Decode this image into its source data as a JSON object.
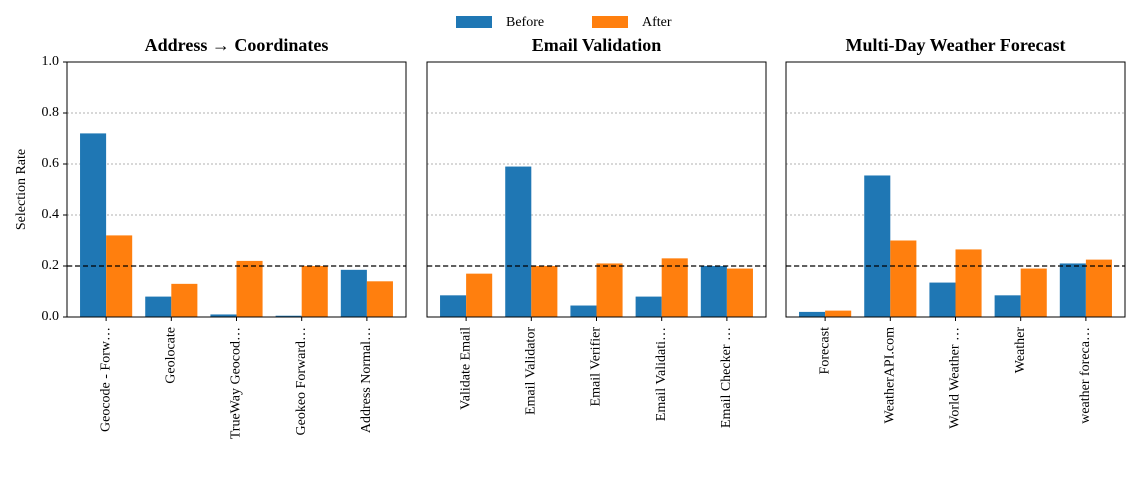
{
  "chart_data": [
    {
      "type": "bar",
      "title": "Address → Coordinates",
      "y_label": "Selection Rate",
      "categories": [
        "Geocode - Forw…",
        "Geolocate",
        "TrueWay Geocod…",
        "Geokeo Forward…",
        "Address Normal…"
      ],
      "series": [
        {
          "name": "Before",
          "color": "#1f77b4",
          "values": [
            0.72,
            0.08,
            0.01,
            0.005,
            0.185
          ]
        },
        {
          "name": "After",
          "color": "#ff7f0e",
          "values": [
            0.32,
            0.13,
            0.22,
            0.2,
            0.14
          ]
        }
      ],
      "ylim": [
        0,
        1
      ],
      "yticks": [
        0.0,
        0.2,
        0.4,
        0.6,
        0.8,
        1.0
      ],
      "grid": true,
      "reference_line": 0.2
    },
    {
      "type": "bar",
      "title": "Email Validation",
      "categories": [
        "Validate Email",
        "Email Validator",
        "Email Verifier",
        "Email Validati…",
        "Email Checker …"
      ],
      "series": [
        {
          "name": "Before",
          "color": "#1f77b4",
          "values": [
            0.085,
            0.59,
            0.045,
            0.08,
            0.2
          ]
        },
        {
          "name": "After",
          "color": "#ff7f0e",
          "values": [
            0.17,
            0.2,
            0.21,
            0.23,
            0.19
          ]
        }
      ],
      "ylim": [
        0,
        1
      ],
      "yticks": [
        0.0,
        0.2,
        0.4,
        0.6,
        0.8,
        1.0
      ],
      "grid": true,
      "reference_line": 0.2
    },
    {
      "type": "bar",
      "title": "Multi-Day Weather Forecast",
      "categories": [
        "Forecast",
        "WeatherAPI.com",
        "World Weather …",
        "Weather",
        "weather foreca…"
      ],
      "series": [
        {
          "name": "Before",
          "color": "#1f77b4",
          "values": [
            0.02,
            0.555,
            0.135,
            0.085,
            0.21
          ]
        },
        {
          "name": "After",
          "color": "#ff7f0e",
          "values": [
            0.025,
            0.3,
            0.265,
            0.19,
            0.225
          ]
        }
      ],
      "ylim": [
        0,
        1
      ],
      "yticks": [
        0.0,
        0.2,
        0.4,
        0.6,
        0.8,
        1.0
      ],
      "grid": true,
      "reference_line": 0.2
    }
  ]
}
